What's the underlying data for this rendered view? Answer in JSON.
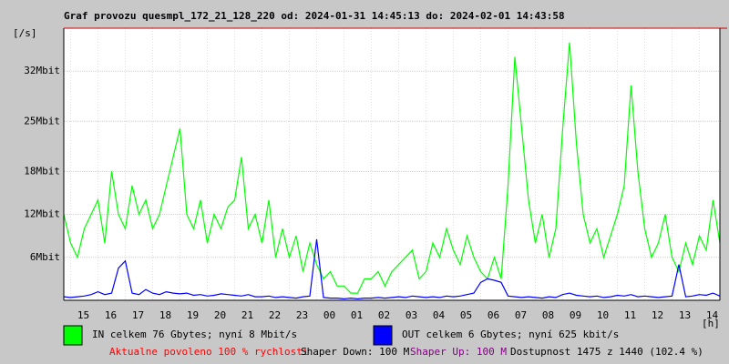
{
  "chart_data": {
    "type": "line",
    "title": "Graf provozu quesmpl_172_21_128_220 od: 2024-01-31 14:45:13 do: 2024-02-01 14:43:58",
    "y_label": "[/s]",
    "x_label": "[h]",
    "xlim": [
      0,
      24
    ],
    "xticks": [
      {
        "value": 0.25,
        "label": "15"
      },
      {
        "value": 1.25,
        "label": "16"
      },
      {
        "value": 2.25,
        "label": "17"
      },
      {
        "value": 3.25,
        "label": "18"
      },
      {
        "value": 4.25,
        "label": "19"
      },
      {
        "value": 5.25,
        "label": "20"
      },
      {
        "value": 6.25,
        "label": "21"
      },
      {
        "value": 7.25,
        "label": "22"
      },
      {
        "value": 8.25,
        "label": "23"
      },
      {
        "value": 9.25,
        "label": "00"
      },
      {
        "value": 10.25,
        "label": "01"
      },
      {
        "value": 11.25,
        "label": "02"
      },
      {
        "value": 12.25,
        "label": "03"
      },
      {
        "value": 13.25,
        "label": "04"
      },
      {
        "value": 14.25,
        "label": "05"
      },
      {
        "value": 15.25,
        "label": "06"
      },
      {
        "value": 16.25,
        "label": "07"
      },
      {
        "value": 17.25,
        "label": "08"
      },
      {
        "value": 18.25,
        "label": "09"
      },
      {
        "value": 19.25,
        "label": "10"
      },
      {
        "value": 20.25,
        "label": "11"
      },
      {
        "value": 21.25,
        "label": "12"
      },
      {
        "value": 22.25,
        "label": "13"
      },
      {
        "value": 23.25,
        "label": "14"
      }
    ],
    "ylim": [
      0,
      38
    ],
    "yticks": [
      {
        "value": 6,
        "label": "6Mbit"
      },
      {
        "value": 12,
        "label": "12Mbit"
      },
      {
        "value": 18,
        "label": "18Mbit"
      },
      {
        "value": 25,
        "label": "25Mbit"
      },
      {
        "value": 32,
        "label": "32Mbit"
      }
    ],
    "grid": true,
    "x": [
      0,
      0.25,
      0.5,
      0.75,
      1,
      1.25,
      1.5,
      1.75,
      2,
      2.25,
      2.5,
      2.75,
      3,
      3.25,
      3.5,
      3.75,
      4,
      4.25,
      4.5,
      4.75,
      5,
      5.25,
      5.5,
      5.75,
      6,
      6.25,
      6.5,
      6.75,
      7,
      7.25,
      7.5,
      7.75,
      8,
      8.25,
      8.5,
      8.75,
      9,
      9.25,
      9.5,
      9.75,
      10,
      10.25,
      10.5,
      10.75,
      11,
      11.25,
      11.5,
      11.75,
      12,
      12.25,
      12.5,
      12.75,
      13,
      13.25,
      13.5,
      13.75,
      14,
      14.25,
      14.5,
      14.75,
      15,
      15.25,
      15.5,
      15.75,
      16,
      16.25,
      16.5,
      16.75,
      17,
      17.25,
      17.5,
      17.75,
      18,
      18.25,
      18.5,
      18.75,
      19,
      19.25,
      19.5,
      19.75,
      20,
      20.25,
      20.5,
      20.75,
      21,
      21.25,
      21.5,
      21.75,
      22,
      22.25,
      22.5,
      22.75,
      23,
      23.25,
      23.5,
      23.75,
      24
    ],
    "series": [
      {
        "name": "IN celkem 76 Gbytes; nyní 8 Mbit/s",
        "color": "#00ff00",
        "values": [
          12,
          8,
          6,
          10,
          12,
          14,
          8,
          18,
          12,
          10,
          16,
          12,
          14,
          10,
          12,
          16,
          20,
          24,
          12,
          10,
          14,
          8,
          12,
          10,
          13,
          14,
          20,
          10,
          12,
          8,
          14,
          6,
          10,
          6,
          9,
          4,
          8,
          5,
          3,
          4,
          2,
          2,
          1,
          1,
          3,
          3,
          4,
          2,
          4,
          5,
          6,
          7,
          3,
          4,
          8,
          6,
          10,
          7,
          5,
          9,
          6,
          4,
          3,
          6,
          3,
          16,
          34,
          24,
          14,
          8,
          12,
          6,
          10,
          24,
          36,
          22,
          12,
          8,
          10,
          6,
          9,
          12,
          16,
          30,
          18,
          10,
          6,
          8,
          12,
          6,
          4,
          8,
          5,
          9,
          7,
          14,
          8
        ]
      },
      {
        "name": "OUT celkem 6 Gbytes; nyní 625 kbit/s",
        "color": "#0000ff",
        "values": [
          0.5,
          0.4,
          0.5,
          0.6,
          0.8,
          1.2,
          0.8,
          1.0,
          4.5,
          5.5,
          1.0,
          0.8,
          1.5,
          1.0,
          0.8,
          1.2,
          1.0,
          0.9,
          1.0,
          0.7,
          0.8,
          0.6,
          0.7,
          0.9,
          0.8,
          0.7,
          0.6,
          0.8,
          0.5,
          0.5,
          0.6,
          0.4,
          0.5,
          0.4,
          0.3,
          0.5,
          0.6,
          8.5,
          0.4,
          0.3,
          0.3,
          0.2,
          0.3,
          0.2,
          0.3,
          0.3,
          0.4,
          0.3,
          0.4,
          0.5,
          0.4,
          0.6,
          0.5,
          0.4,
          0.5,
          0.4,
          0.6,
          0.5,
          0.6,
          0.8,
          1.0,
          2.5,
          3.0,
          2.8,
          2.5,
          0.6,
          0.5,
          0.4,
          0.5,
          0.4,
          0.3,
          0.5,
          0.4,
          0.8,
          1.0,
          0.7,
          0.6,
          0.5,
          0.6,
          0.4,
          0.5,
          0.7,
          0.6,
          0.8,
          0.5,
          0.6,
          0.5,
          0.4,
          0.5,
          0.6,
          5.0,
          0.5,
          0.6,
          0.8,
          0.7,
          1.0,
          0.6
        ]
      }
    ],
    "annotations": [
      {
        "text": "Aktualne povoleno 100 % rychlosti",
        "color": "#ff0000"
      },
      {
        "text": "Shaper Down: 100 M",
        "color": "#000000"
      },
      {
        "text": "Shaper Up: 100 M",
        "color": "#800080"
      },
      {
        "text": "Dostupnost 1475 z 1440 (102.4 %)",
        "color": "#000000"
      }
    ]
  }
}
